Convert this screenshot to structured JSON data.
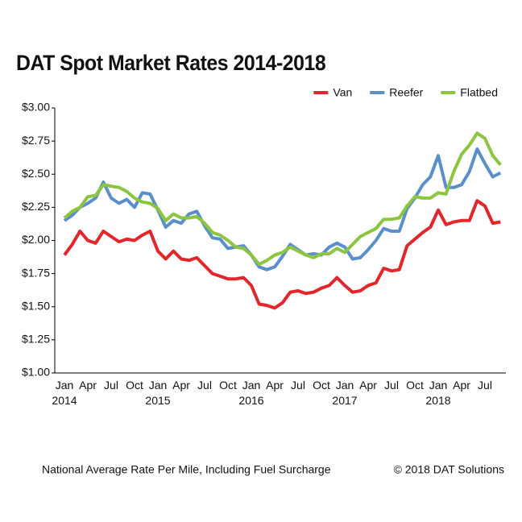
{
  "chart_data": {
    "type": "line",
    "title": "DAT Spot Market Rates 2014-2018",
    "footnote": "National Average Rate Per Mile, Including Fuel Surcharge",
    "source": "© 2018 DAT Solutions",
    "legend": "top-right",
    "categories": [
      "Jan\n2014",
      null,
      null,
      "Apr",
      null,
      null,
      "Jul",
      null,
      null,
      "Oct",
      null,
      null,
      "Jan\n2015",
      null,
      null,
      "Apr",
      null,
      null,
      "Jul",
      null,
      null,
      "Oct",
      null,
      null,
      "Jan\n2016",
      null,
      null,
      "Apr",
      null,
      null,
      "Jul",
      null,
      null,
      "Oct",
      null,
      null,
      "Jan\n2017",
      null,
      null,
      "Apr",
      null,
      null,
      "Jul",
      null,
      null,
      "Oct",
      null,
      null,
      "Jan\n2018",
      null,
      null,
      "Apr",
      null,
      null,
      "Jul",
      null,
      null
    ],
    "ylim": [
      1,
      3
    ],
    "yticks": [
      {
        "value": 1,
        "label": "$1.00"
      },
      {
        "value": 1.25,
        "label": "$1.25"
      },
      {
        "value": 1.5,
        "label": "$1.50"
      },
      {
        "value": 1.75,
        "label": "$1.75"
      },
      {
        "value": 2,
        "label": "$2.00"
      },
      {
        "value": 2.25,
        "label": "$2.25"
      },
      {
        "value": 2.5,
        "label": "$2.50"
      },
      {
        "value": 2.75,
        "label": "$2.75"
      },
      {
        "value": 3,
        "label": "$3.00"
      }
    ],
    "series": [
      {
        "name": "Van",
        "color": "#e3262b",
        "values": [
          1.89,
          1.97,
          2.07,
          2.0,
          1.98,
          2.07,
          2.03,
          1.99,
          2.01,
          2.0,
          2.04,
          2.07,
          1.92,
          1.86,
          1.92,
          1.86,
          1.85,
          1.87,
          1.81,
          1.75,
          1.73,
          1.71,
          1.71,
          1.72,
          1.66,
          1.52,
          1.51,
          1.49,
          1.53,
          1.61,
          1.62,
          1.6,
          1.61,
          1.64,
          1.66,
          1.72,
          1.66,
          1.61,
          1.62,
          1.66,
          1.68,
          1.79,
          1.77,
          1.78,
          1.96,
          2.01,
          2.06,
          2.1,
          2.23,
          2.12,
          2.14,
          2.15,
          2.15,
          2.3,
          2.26,
          2.13,
          2.14
        ]
      },
      {
        "name": "Reefer",
        "color": "#5b8fcc",
        "values": [
          2.15,
          2.19,
          2.25,
          2.28,
          2.32,
          2.44,
          2.32,
          2.28,
          2.31,
          2.25,
          2.36,
          2.35,
          2.23,
          2.1,
          2.15,
          2.13,
          2.2,
          2.22,
          2.11,
          2.02,
          2.01,
          1.94,
          1.95,
          1.96,
          1.89,
          1.8,
          1.78,
          1.8,
          1.88,
          1.97,
          1.93,
          1.89,
          1.9,
          1.89,
          1.95,
          1.98,
          1.95,
          1.86,
          1.87,
          1.93,
          2.0,
          2.09,
          2.07,
          2.07,
          2.24,
          2.32,
          2.42,
          2.48,
          2.64,
          2.4,
          2.4,
          2.42,
          2.52,
          2.69,
          2.58,
          2.48,
          2.51
        ]
      },
      {
        "name": "Flatbed",
        "color": "#8cc63f",
        "values": [
          2.17,
          2.22,
          2.25,
          2.33,
          2.34,
          2.42,
          2.41,
          2.4,
          2.37,
          2.32,
          2.29,
          2.28,
          2.24,
          2.15,
          2.2,
          2.17,
          2.17,
          2.18,
          2.13,
          2.06,
          2.04,
          2.0,
          1.95,
          1.94,
          1.89,
          1.82,
          1.85,
          1.89,
          1.91,
          1.95,
          1.92,
          1.89,
          1.87,
          1.9,
          1.9,
          1.94,
          1.91,
          1.97,
          2.03,
          2.06,
          2.09,
          2.16,
          2.16,
          2.17,
          2.26,
          2.33,
          2.32,
          2.32,
          2.36,
          2.35,
          2.52,
          2.65,
          2.72,
          2.81,
          2.77,
          2.64,
          2.57
        ]
      }
    ]
  }
}
